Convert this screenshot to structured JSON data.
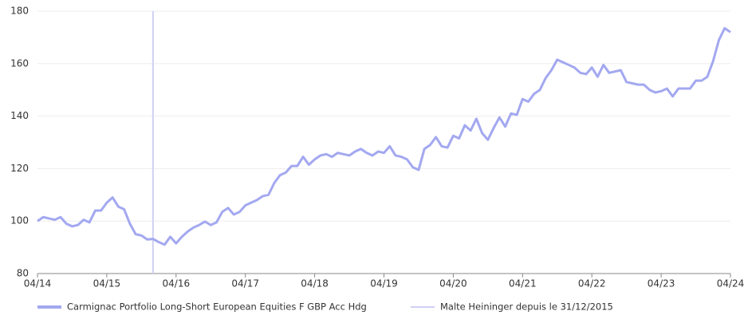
{
  "chart_data": {
    "type": "line",
    "x": [
      0,
      1,
      2,
      3,
      4,
      5,
      6,
      7,
      8,
      9,
      10,
      11,
      12,
      13,
      14,
      15,
      16,
      17,
      18,
      19,
      20,
      21,
      22,
      23,
      24,
      25,
      26,
      27,
      28,
      29,
      30,
      31,
      32,
      33,
      34,
      35,
      36,
      37,
      38,
      39,
      40,
      41,
      42,
      43,
      44,
      45,
      46,
      47,
      48,
      49,
      50,
      51,
      52,
      53,
      54,
      55,
      56,
      57,
      58,
      59,
      60,
      61,
      62,
      63,
      64,
      65,
      66,
      67,
      68,
      69,
      70,
      71,
      72,
      73,
      74,
      75,
      76,
      77,
      78,
      79,
      80,
      81,
      82,
      83,
      84,
      85,
      86,
      87,
      88,
      89,
      90,
      91,
      92,
      93,
      94,
      95,
      96,
      97,
      98,
      99,
      100,
      101,
      102,
      103,
      104,
      105,
      106,
      107,
      108,
      109,
      110,
      111,
      112,
      113,
      114,
      115,
      116,
      117,
      118,
      119,
      120
    ],
    "series": [
      {
        "name": "Carmignac Portfolio Long-Short European Equities F GBP Acc Hdg",
        "color": "#a3a8f0",
        "values": [
          100,
          101.5,
          101,
          100.5,
          101.5,
          99,
          98,
          98.5,
          100.5,
          99.5,
          104,
          104,
          107,
          109,
          105.5,
          104.5,
          99,
          95,
          94.5,
          93,
          93.2,
          92,
          91,
          94,
          91.5,
          94,
          96,
          97.5,
          98.5,
          99.8,
          98.5,
          99.5,
          103.5,
          105,
          102.5,
          103.5,
          106,
          107,
          108,
          109.5,
          110,
          114.5,
          117.5,
          118.5,
          121,
          121,
          124.5,
          121.5,
          123.5,
          125,
          125.5,
          124.5,
          126,
          125.5,
          125,
          126.5,
          127.5,
          126,
          125,
          126.5,
          126,
          128.5,
          125,
          124.5,
          123.5,
          120.5,
          119.5,
          127.5,
          129,
          132,
          128.5,
          128,
          132.5,
          131.5,
          136.5,
          134.5,
          139,
          133.5,
          131,
          135.5,
          139.5,
          136,
          141,
          140.5,
          146.5,
          145.5,
          148.5,
          150,
          154.5,
          157.5,
          161.5,
          160.5,
          159.5,
          158.5,
          156.5,
          156,
          158.5,
          155,
          159.5,
          156.5,
          157,
          157.5,
          153,
          152.5,
          152,
          152,
          150,
          149,
          149.5,
          150.5,
          147.5,
          150.5,
          150.5,
          150.5,
          153.5,
          153.5,
          155,
          161,
          169,
          173.5,
          172
        ]
      }
    ],
    "vline": {
      "name": "Malte Heininger depuis le 31/12/2015",
      "x": 20,
      "color": "#cfd0f5"
    },
    "xlim": [
      0,
      120
    ],
    "xticks": [
      {
        "value": 0,
        "label": "04/14"
      },
      {
        "value": 12,
        "label": "04/15"
      },
      {
        "value": 24,
        "label": "04/16"
      },
      {
        "value": 36,
        "label": "04/17"
      },
      {
        "value": 48,
        "label": "04/18"
      },
      {
        "value": 60,
        "label": "04/19"
      },
      {
        "value": 72,
        "label": "04/20"
      },
      {
        "value": 84,
        "label": "04/21"
      },
      {
        "value": 96,
        "label": "04/22"
      },
      {
        "value": 108,
        "label": "04/23"
      },
      {
        "value": 120,
        "label": "04/24"
      }
    ],
    "ylim": [
      80,
      180
    ],
    "yticks": [
      80,
      100,
      120,
      140,
      160,
      180
    ],
    "grid": true
  }
}
